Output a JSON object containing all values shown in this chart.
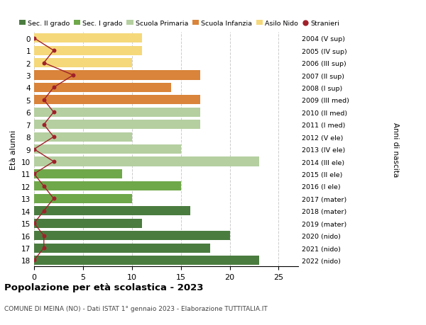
{
  "ages": [
    18,
    17,
    16,
    15,
    14,
    13,
    12,
    11,
    10,
    9,
    8,
    7,
    6,
    5,
    4,
    3,
    2,
    1,
    0
  ],
  "right_labels": [
    "2004 (V sup)",
    "2005 (IV sup)",
    "2006 (III sup)",
    "2007 (II sup)",
    "2008 (I sup)",
    "2009 (III med)",
    "2010 (II med)",
    "2011 (I med)",
    "2012 (V ele)",
    "2013 (IV ele)",
    "2014 (III ele)",
    "2015 (II ele)",
    "2016 (I ele)",
    "2017 (mater)",
    "2018 (mater)",
    "2019 (mater)",
    "2020 (nido)",
    "2021 (nido)",
    "2022 (nido)"
  ],
  "bar_values": [
    23,
    18,
    20,
    11,
    16,
    10,
    15,
    9,
    23,
    15,
    10,
    17,
    17,
    17,
    14,
    17,
    10,
    11,
    11
  ],
  "bar_colors": [
    "#4a7c3f",
    "#4a7c3f",
    "#4a7c3f",
    "#4a7c3f",
    "#4a7c3f",
    "#6fa84a",
    "#6fa84a",
    "#6fa84a",
    "#b5cfa0",
    "#b5cfa0",
    "#b5cfa0",
    "#b5cfa0",
    "#b5cfa0",
    "#d9843a",
    "#d9843a",
    "#d9843a",
    "#f5d87a",
    "#f5d87a",
    "#f5d87a"
  ],
  "stranieri_values": [
    0,
    1,
    1,
    0,
    1,
    2,
    1,
    0,
    2,
    0,
    2,
    1,
    2,
    1,
    2,
    4,
    1,
    2,
    0
  ],
  "legend_labels": [
    "Sec. II grado",
    "Sec. I grado",
    "Scuola Primaria",
    "Scuola Infanzia",
    "Asilo Nido",
    "Stranieri"
  ],
  "legend_colors": [
    "#4a7c3f",
    "#6fa84a",
    "#b5cfa0",
    "#d9843a",
    "#f5d87a",
    "#a0212a"
  ],
  "ylabel": "Età alunni",
  "right_ylabel": "Anni di nascita",
  "title": "Popolazione per età scolastica - 2023",
  "subtitle": "COMUNE DI MEINA (NO) - Dati ISTAT 1° gennaio 2023 - Elaborazione TUTTITALIA.IT",
  "xlim": [
    0,
    27
  ],
  "stranieri_color": "#a0212a",
  "bg_color": "#ffffff",
  "grid_color": "#cccccc"
}
